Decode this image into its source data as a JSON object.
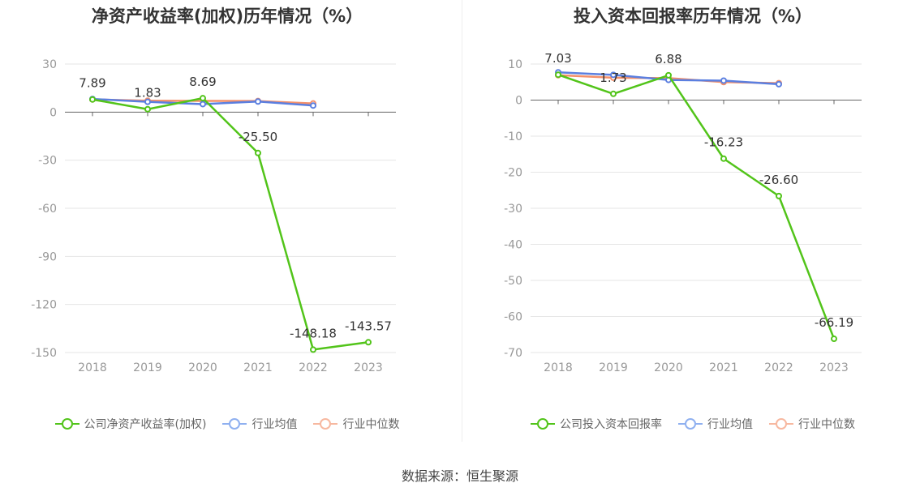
{
  "chart_data": [
    {
      "type": "line",
      "title": "净资产收益率(加权)历年情况（%）",
      "categories": [
        "2018",
        "2019",
        "2020",
        "2021",
        "2022",
        "2023"
      ],
      "ylim": [
        -150,
        30
      ],
      "yticks": [
        30,
        0,
        -30,
        -60,
        -90,
        -120,
        -150
      ],
      "grid": true,
      "legend_position": "bottom",
      "series": [
        {
          "name": "公司净资产收益率(加权)",
          "color": "#52c41a",
          "values": [
            7.89,
            1.83,
            8.69,
            -25.5,
            -148.18,
            -143.57
          ],
          "labels": [
            "7.89",
            "1.83",
            "8.69",
            "-25.50",
            "-148.18",
            "-143.57"
          ]
        },
        {
          "name": "行业均值",
          "color": "#5b7fe0",
          "values": [
            8.2,
            6.4,
            5.0,
            6.6,
            4.1,
            null
          ]
        },
        {
          "name": "行业中位数",
          "color": "#f4906a",
          "values": [
            7.9,
            7.1,
            7.0,
            6.9,
            5.4,
            null
          ]
        }
      ]
    },
    {
      "type": "line",
      "title": "投入资本回报率历年情况（%）",
      "categories": [
        "2018",
        "2019",
        "2020",
        "2021",
        "2022",
        "2023"
      ],
      "ylim": [
        -70,
        10
      ],
      "yticks": [
        10,
        0,
        -10,
        -20,
        -30,
        -40,
        -50,
        -60,
        -70
      ],
      "grid": true,
      "legend_position": "bottom",
      "series": [
        {
          "name": "公司投入资本回报率",
          "color": "#52c41a",
          "values": [
            7.03,
            1.73,
            6.88,
            -16.23,
            -26.6,
            -66.19
          ],
          "labels": [
            "7.03",
            "1.73",
            "6.88",
            "-16.23",
            "-26.60",
            "-66.19"
          ]
        },
        {
          "name": "行业均值",
          "color": "#5b7fe0",
          "values": [
            7.7,
            7.0,
            5.6,
            5.4,
            4.4,
            null
          ]
        },
        {
          "name": "行业中位数",
          "color": "#f4906a",
          "values": [
            6.9,
            6.2,
            6.1,
            5.0,
            4.7,
            null
          ]
        }
      ]
    }
  ],
  "footer": {
    "source": "数据来源：恒生聚源"
  }
}
